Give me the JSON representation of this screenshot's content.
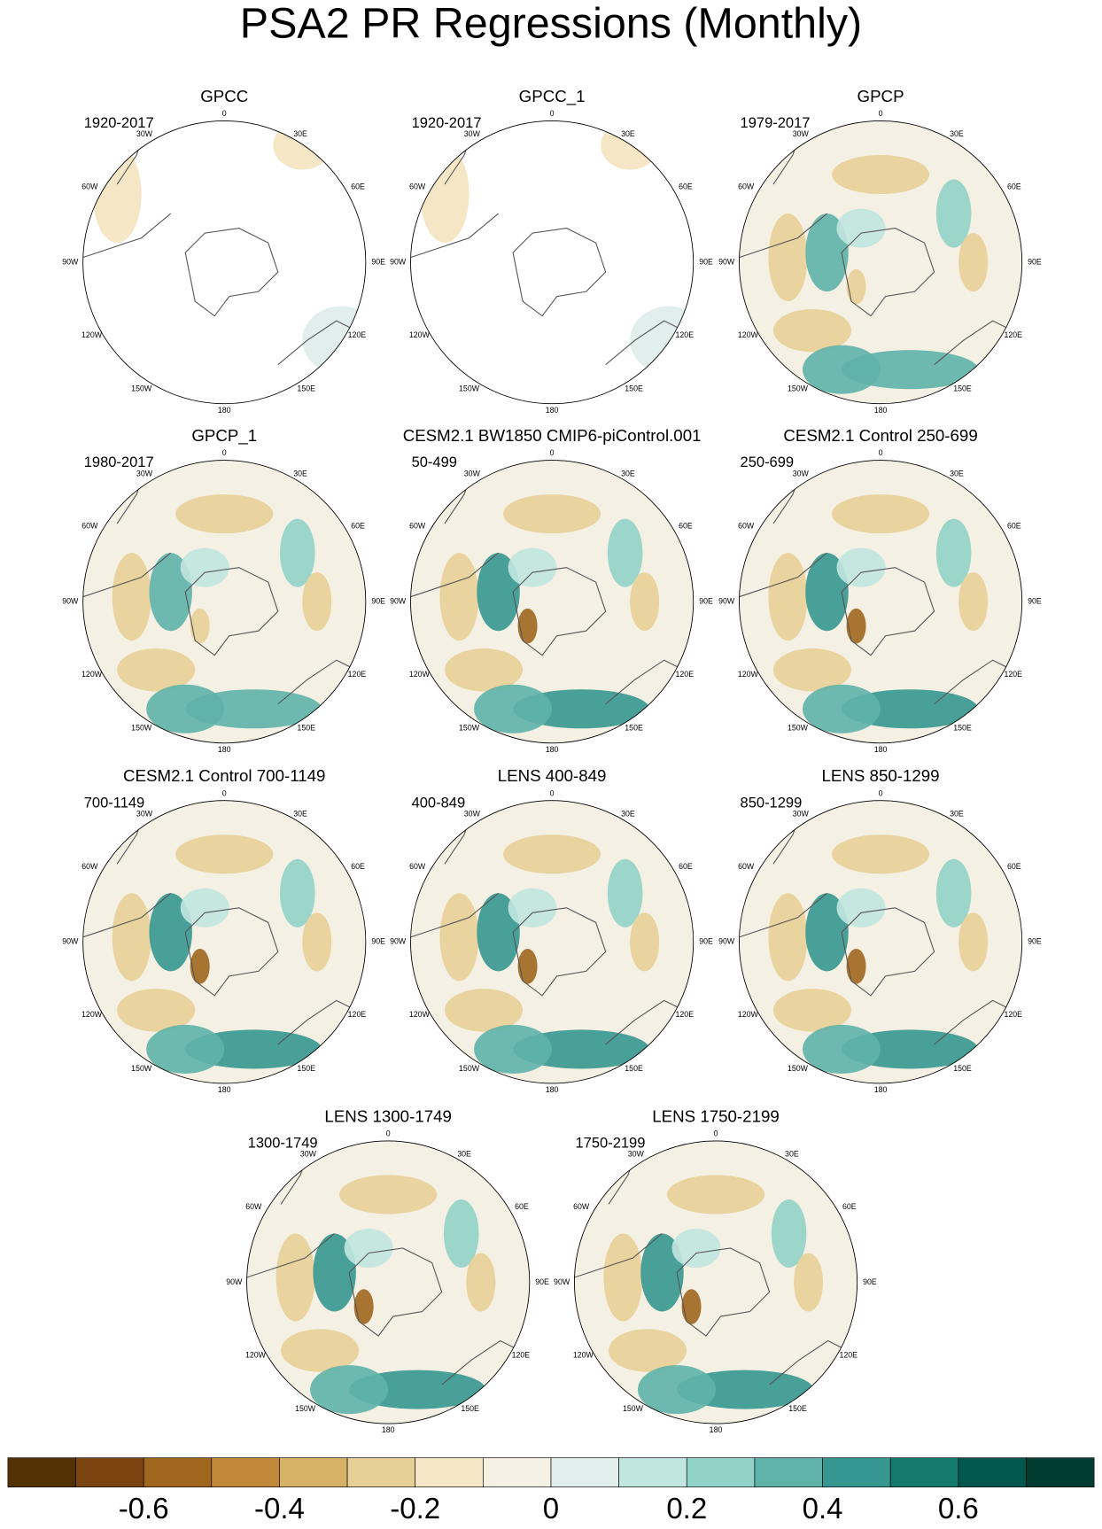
{
  "title": "PSA2 PR Regressions (Monthly)",
  "panels": [
    {
      "title": "GPCC",
      "period": "1920-2017"
    },
    {
      "title": "GPCC_1",
      "period": "1920-2017"
    },
    {
      "title": "GPCP",
      "period": "1979-2017"
    },
    {
      "title": "GPCP_1",
      "period": "1980-2017"
    },
    {
      "title": "CESM2.1 BW1850 CMIP6-piControl.001",
      "period": "50-499"
    },
    {
      "title": "CESM2.1 Control 250-699",
      "period": "250-699"
    },
    {
      "title": "CESM2.1 Control 700-1149",
      "period": "700-1149"
    },
    {
      "title": "LENS 400-849",
      "period": "400-849"
    },
    {
      "title": "LENS 850-1299",
      "period": "850-1299"
    },
    {
      "title": "LENS 1300-1749",
      "period": "1300-1749"
    },
    {
      "title": "LENS 1750-2199",
      "period": "1750-2199"
    }
  ],
  "longitude_labels": [
    "0",
    "30E",
    "60E",
    "90E",
    "120E",
    "150E",
    "180",
    "150W",
    "120W",
    "90W",
    "60W",
    "30W"
  ],
  "colorbar": {
    "lim": [
      -0.8,
      0.8
    ],
    "colors": [
      "#543005",
      "#7a4510",
      "#a0661e",
      "#c1883a",
      "#d6b266",
      "#e8cf96",
      "#f5e7c6",
      "#f5f0e4",
      "#e1eeec",
      "#c1e6df",
      "#92d3c8",
      "#5fb3a8",
      "#35978f",
      "#147a6e",
      "#01574e",
      "#003c30"
    ],
    "ticks": [
      -0.6,
      -0.4,
      -0.2,
      0,
      0.2,
      0.4,
      0.6
    ]
  }
}
